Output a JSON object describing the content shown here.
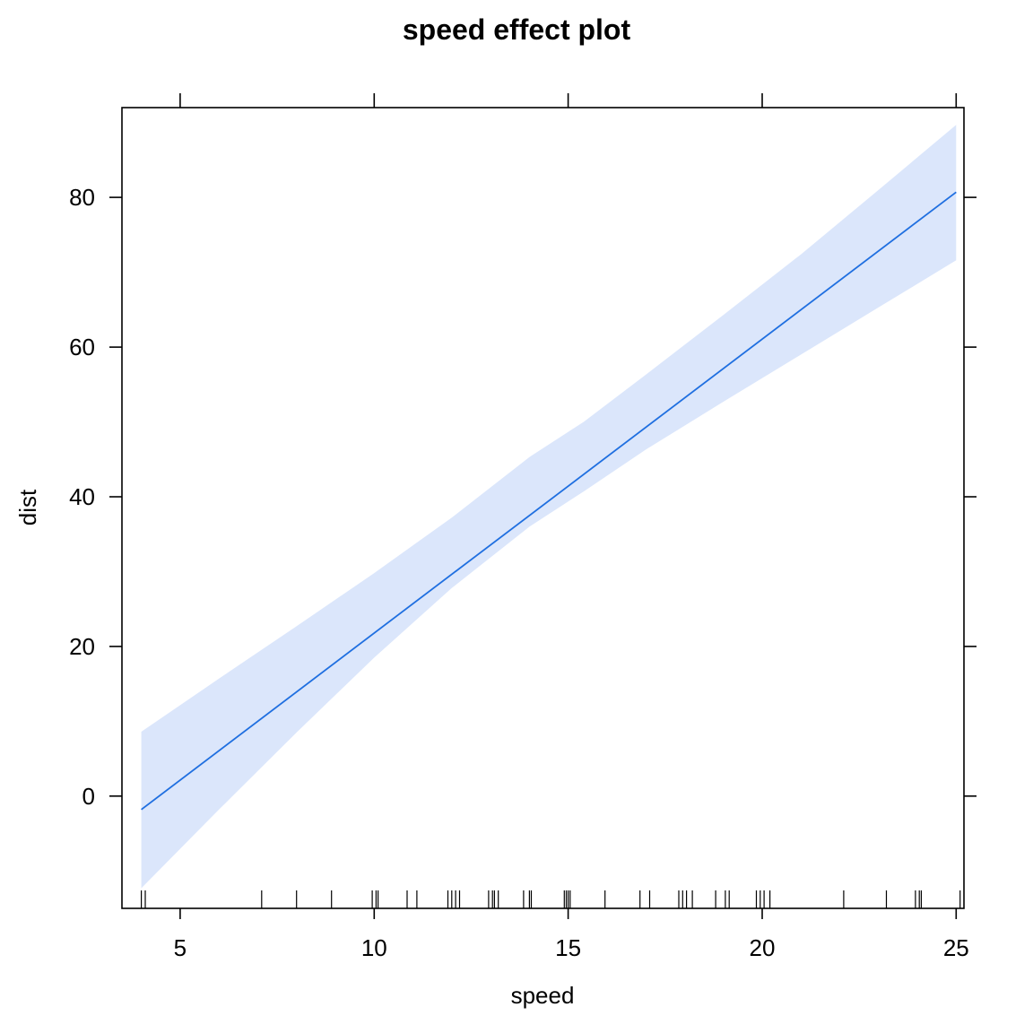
{
  "chart_data": {
    "type": "line",
    "title": "speed effect plot",
    "xlabel": "speed",
    "ylabel": "dist",
    "xlim": [
      3.5,
      25.2
    ],
    "ylim": [
      -15,
      92
    ],
    "x_ticks": [
      5,
      10,
      15,
      20,
      25
    ],
    "y_ticks": [
      0,
      20,
      40,
      60,
      80
    ],
    "grid": false,
    "series": [
      {
        "x": [
          4,
          25
        ],
        "y": [
          -1.8,
          80.7
        ],
        "lower": [
          -12.3,
          71.6
        ],
        "upper": [
          8.6,
          89.7
        ]
      }
    ],
    "band_curve": {
      "x": [
        4,
        6,
        8,
        10,
        12,
        14,
        15.4,
        17,
        19,
        21,
        23,
        25
      ],
      "lower": [
        -12.3,
        -1.8,
        8.5,
        18.5,
        27.8,
        36.0,
        40.7,
        46.3,
        52.7,
        59.0,
        65.3,
        71.6
      ],
      "upper": [
        8.6,
        15.7,
        22.7,
        29.8,
        37.2,
        45.3,
        50.0,
        56.3,
        64.3,
        72.4,
        81.0,
        89.7
      ]
    },
    "rug_x": [
      4,
      4.1,
      7.1,
      8,
      8.9,
      9.95,
      10.05,
      10.1,
      10.85,
      11.1,
      11.9,
      12,
      12.1,
      12.2,
      12.95,
      13.05,
      13.1,
      13.2,
      13.85,
      14,
      14.05,
      14.9,
      14.95,
      15,
      15.05,
      15.95,
      16.85,
      17.1,
      17.85,
      17.95,
      18.05,
      18.2,
      18.8,
      19.05,
      19.15,
      19.85,
      19.95,
      20.05,
      20.2,
      22.1,
      23.2,
      23.95,
      24.05,
      24.1,
      25.1
    ],
    "colors": {
      "line": "#1f6fe0",
      "band": "#dbe6fb",
      "axis": "#000000"
    }
  }
}
